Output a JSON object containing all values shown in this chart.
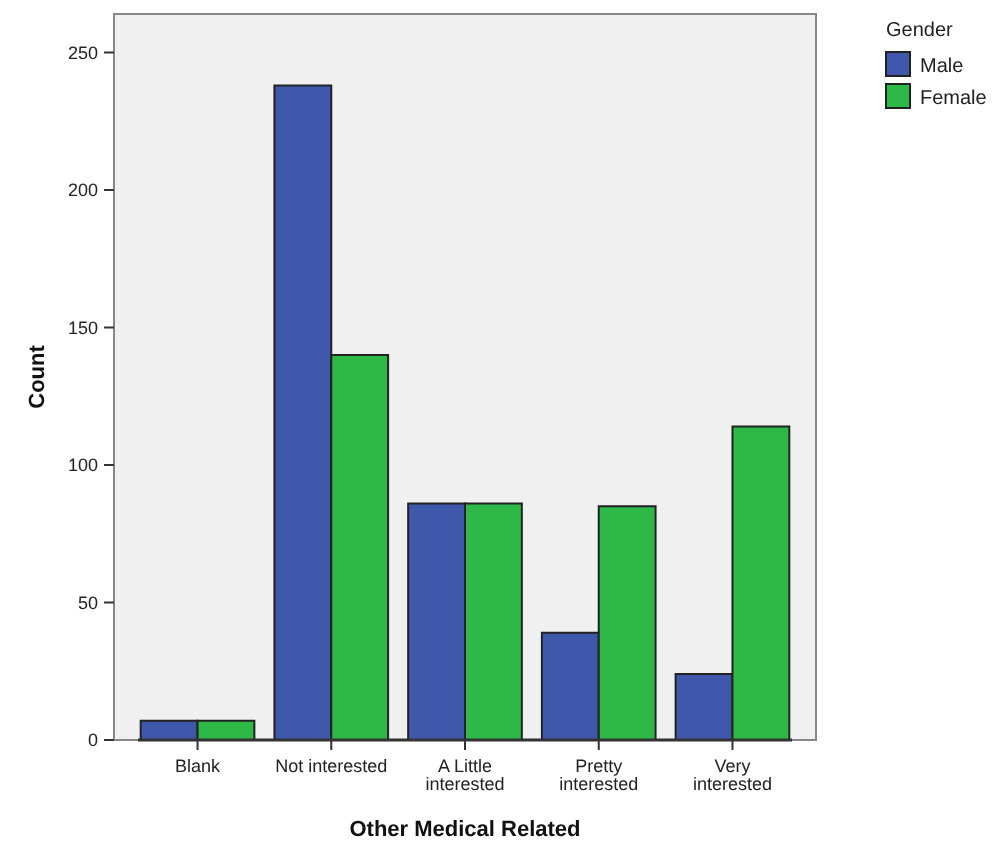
{
  "chart_data": {
    "type": "bar",
    "xlabel": "Other Medical Related",
    "ylabel": "Count",
    "legend_title": "Gender",
    "categories": [
      "Blank",
      "Not interested",
      "A Little interested",
      "Pretty interested",
      "Very interested"
    ],
    "series": [
      {
        "name": "Male",
        "color": "#3f58ab",
        "values": [
          7,
          238,
          86,
          39,
          24
        ]
      },
      {
        "name": "Female",
        "color": "#2eb848",
        "values": [
          7,
          140,
          86,
          85,
          114
        ]
      }
    ],
    "ylim": [
      0,
      264
    ],
    "yticks": [
      0,
      50,
      100,
      150,
      200,
      250
    ],
    "grid": false,
    "legend": "top right"
  }
}
